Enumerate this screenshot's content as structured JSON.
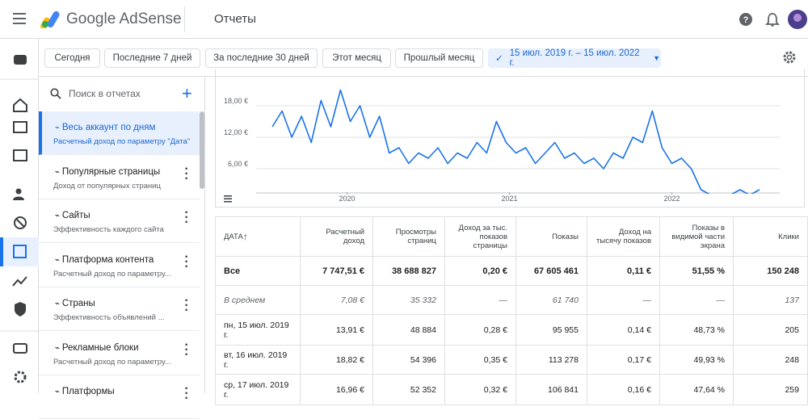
{
  "header": {
    "brand": "Google AdSense",
    "page": "Отчеты"
  },
  "date_filters": [
    "Сегодня",
    "Последние 7 дней",
    "За последние 30 дней",
    "Этот месяц",
    "Прошлый месяц"
  ],
  "date_range": "15 июл. 2019 г. – 15 июл. 2022 г.",
  "sidebar": {
    "search_placeholder": "Поиск в отчетах",
    "items": [
      {
        "title": "Весь аккаунт по дням",
        "subtitle": "Расчетный доход по параметру \"Дата\""
      },
      {
        "title": "Популярные страницы",
        "subtitle": "Доход от популярных страниц"
      },
      {
        "title": "Сайты",
        "subtitle": "Эффективность каждого сайта"
      },
      {
        "title": "Платформа контента",
        "subtitle": "Расчетный доход по параметру..."
      },
      {
        "title": "Страны",
        "subtitle": "Эффективность объявлений ..."
      },
      {
        "title": "Рекламные блоки",
        "subtitle": "Расчетный доход по параметру..."
      },
      {
        "title": "Платформы"
      }
    ]
  },
  "chart_data": {
    "type": "line",
    "color": "#1a73e8",
    "grid": true,
    "xlim": [
      2019.54,
      2022.54
    ],
    "xticks": [
      2020,
      2021,
      2022
    ],
    "ylim": [
      0,
      24
    ],
    "yticks": [
      {
        "value": 6,
        "label": "6,00 €"
      },
      {
        "value": 12,
        "label": "12,00 €"
      },
      {
        "value": 18,
        "label": "18,00 €"
      }
    ],
    "x": [
      2019.54,
      2019.6,
      2019.66,
      2019.72,
      2019.78,
      2019.84,
      2019.9,
      2019.96,
      2020.02,
      2020.08,
      2020.14,
      2020.2,
      2020.26,
      2020.32,
      2020.38,
      2020.44,
      2020.5,
      2020.56,
      2020.62,
      2020.68,
      2020.74,
      2020.8,
      2020.86,
      2020.92,
      2020.98,
      2021.04,
      2021.1,
      2021.16,
      2021.22,
      2021.28,
      2021.34,
      2021.4,
      2021.46,
      2021.52,
      2021.58,
      2021.64,
      2021.7,
      2021.76,
      2021.82,
      2021.88,
      2021.94,
      2022.0,
      2022.06,
      2022.12,
      2022.18,
      2022.24,
      2022.3,
      2022.36,
      2022.42,
      2022.48,
      2022.54
    ],
    "values": [
      14,
      17,
      12,
      16,
      11,
      19,
      14,
      21,
      15,
      18,
      12,
      16,
      9,
      10,
      7,
      9,
      8,
      10,
      7,
      9,
      8,
      11,
      9,
      15,
      11,
      9,
      10,
      7,
      9,
      11,
      8,
      9,
      7,
      8,
      6,
      9,
      8,
      12,
      11,
      17,
      10,
      7,
      8,
      6,
      2,
      1,
      1,
      1,
      2,
      1,
      2
    ]
  },
  "table": {
    "columns": [
      "ДАТА",
      "Расчетный доход",
      "Просмотры страниц",
      "Доход за тыс. показов страницы",
      "Показы",
      "Доход на тысячу показов",
      "Показы в видимой части экрана",
      "Клики"
    ],
    "rows": [
      [
        "Все",
        "7 747,51 €",
        "38 688 827",
        "0,20 €",
        "67 605 461",
        "0,11 €",
        "51,55 %",
        "150 248"
      ],
      [
        "В среднем",
        "7,08 €",
        "35 332",
        "—",
        "61 740",
        "—",
        "—",
        "137"
      ],
      [
        "пн, 15 июл. 2019 г.",
        "13,91 €",
        "48 884",
        "0,28 €",
        "95 955",
        "0,14 €",
        "48,73 %",
        "205"
      ],
      [
        "вт, 16 июл. 2019 г.",
        "18,82 €",
        "54 396",
        "0,35 €",
        "113 278",
        "0,17 €",
        "49,93 %",
        "248"
      ],
      [
        "ср, 17 июл. 2019 г.",
        "16,96 €",
        "52 352",
        "0,32 €",
        "106 841",
        "0,16 €",
        "47,64 %",
        "259"
      ]
    ]
  }
}
